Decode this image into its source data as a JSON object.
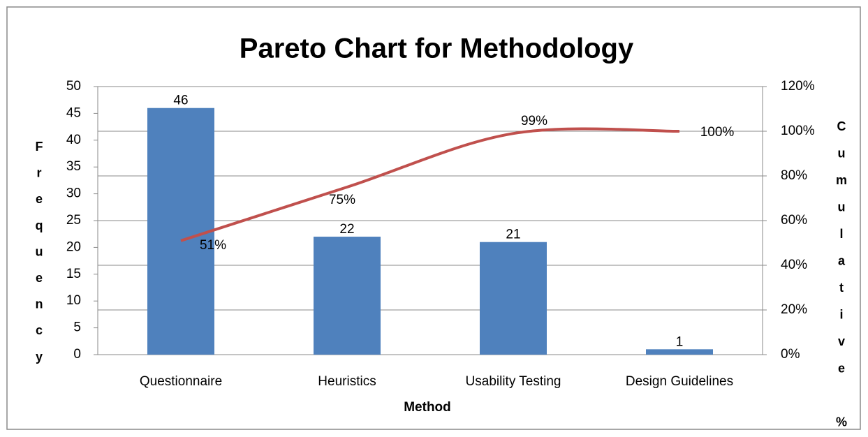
{
  "chart_data": {
    "type": "pareto",
    "title": "Pareto Chart for Methodology",
    "x_label": "Method",
    "y_label": "Frequency",
    "y2_label": "Cumulative %",
    "categories": [
      "Questionnaire",
      "Heuristics",
      "Usability Testing",
      "Design Guidelines"
    ],
    "series": [
      {
        "name": "Frequency",
        "type": "bar",
        "color": "#4f81bd",
        "values": [
          46,
          22,
          21,
          1
        ]
      },
      {
        "name": "Cumulative %",
        "type": "line",
        "axis": "y2",
        "color": "#c0504d",
        "values": [
          51,
          75,
          99,
          100
        ],
        "value_labels": [
          "51%",
          "75%",
          "99%",
          "100%"
        ]
      }
    ],
    "ylim": [
      0,
      50
    ],
    "yticks": [
      0,
      5,
      10,
      15,
      20,
      25,
      30,
      35,
      40,
      45,
      50
    ],
    "y2lim": [
      0,
      120
    ],
    "y2ticks": [
      {
        "value": 0,
        "label": "0%"
      },
      {
        "value": 20,
        "label": "20%"
      },
      {
        "value": 40,
        "label": "40%"
      },
      {
        "value": 60,
        "label": "60%"
      },
      {
        "value": 80,
        "label": "80%"
      },
      {
        "value": 100,
        "label": "100%"
      },
      {
        "value": 120,
        "label": "120%"
      }
    ],
    "grid": true
  }
}
